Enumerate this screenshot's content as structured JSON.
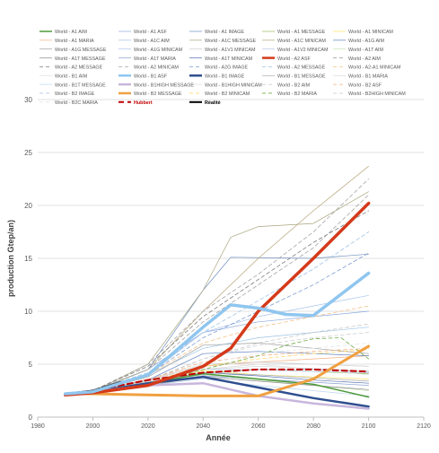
{
  "chart_data": {
    "type": "line",
    "title": "",
    "xlabel": "Année",
    "ylabel": "production Gtep/an)",
    "xlim": [
      1980,
      2120
    ],
    "ylim": [
      0,
      30
    ],
    "x_ticks": [
      "1980",
      "2000",
      "2020",
      "2040",
      "2060",
      "2080",
      "2100",
      "2120"
    ],
    "y_ticks": [
      "0",
      "5",
      "10",
      "15",
      "20",
      "25",
      "30"
    ],
    "grid": "horizontal",
    "legend_position": "top",
    "legend_columns": 5,
    "series": [
      {
        "name": "World - A1 AIM",
        "color": "#4e9a3a",
        "width": 1.5,
        "dash": "",
        "x": [
          1990,
          2000,
          2020,
          2040,
          2060,
          2080,
          2100
        ],
        "y": [
          2.2,
          2.4,
          3.2,
          4.1,
          3.6,
          3.1,
          1.9
        ]
      },
      {
        "name": "World - A1 ASF",
        "color": "#8faadc",
        "width": 0.7,
        "dash": "",
        "x": [
          1990,
          2000,
          2020,
          2040,
          2060,
          2080,
          2100
        ],
        "y": [
          2.2,
          2.5,
          4.5,
          8.0,
          9.0,
          9.5,
          10.0
        ]
      },
      {
        "name": "World - A1 IMAGE",
        "color": "#6f8fbf",
        "width": 0.7,
        "dash": "",
        "x": [
          1990,
          2000,
          2020,
          2040,
          2050,
          2080,
          2100
        ],
        "y": [
          2.2,
          2.4,
          4.5,
          12.0,
          15.1,
          15.0,
          15.4
        ]
      },
      {
        "name": "World - A1 MESSAGE",
        "color": "#9bbb59",
        "width": 0.7,
        "dash": "",
        "x": [
          1990,
          2000,
          2020,
          2040,
          2060,
          2080,
          2100
        ],
        "y": [
          2.2,
          2.4,
          3.0,
          4.2,
          4.5,
          4.3,
          4.1
        ]
      },
      {
        "name": "World - A1 MINICAM",
        "color": "#f5e264",
        "width": 0.7,
        "dash": "",
        "x": [
          1990,
          2000,
          2020,
          2040,
          2060,
          2080,
          2100
        ],
        "y": [
          2.2,
          2.4,
          3.2,
          4.4,
          4.0,
          3.8,
          3.6
        ]
      },
      {
        "name": "World - A1 MARIA",
        "color": "#f4b183",
        "width": 0.7,
        "dash": "",
        "x": [
          1990,
          2000,
          2020,
          2040,
          2060,
          2080,
          2100
        ],
        "y": [
          2.2,
          2.4,
          3.6,
          4.8,
          5.2,
          5.5,
          5.8
        ]
      },
      {
        "name": "World - A1C AIM",
        "color": "#9dc3e6",
        "width": 0.7,
        "dash": "",
        "x": [
          1990,
          2000,
          2020,
          2040,
          2060,
          2080,
          2100
        ],
        "y": [
          2.2,
          2.5,
          4.0,
          6.5,
          7.5,
          8.0,
          8.5
        ]
      },
      {
        "name": "World - A1C MESSAGE",
        "color": "#a9a57c",
        "width": 0.7,
        "dash": "",
        "x": [
          1990,
          2000,
          2020,
          2040,
          2050,
          2060,
          2080,
          2100
        ],
        "y": [
          2.2,
          2.4,
          5.0,
          12.0,
          17.0,
          18.0,
          18.3,
          21.3
        ]
      },
      {
        "name": "World - A1C MINICAM",
        "color": "#b5a57a",
        "width": 0.7,
        "dash": "",
        "x": [
          1990,
          2000,
          2020,
          2040,
          2060,
          2080,
          2100
        ],
        "y": [
          2.2,
          2.4,
          4.5,
          10.0,
          15.0,
          19.5,
          23.7
        ]
      },
      {
        "name": "World - A1G AIM",
        "color": "#5b7fbf",
        "width": 0.7,
        "dash": "",
        "x": [
          1990,
          2000,
          2020,
          2040,
          2060,
          2080,
          2100
        ],
        "y": [
          2.2,
          2.4,
          3.5,
          6.0,
          6.2,
          6.0,
          5.8
        ]
      },
      {
        "name": "World - A1G MESSAGE",
        "color": "#9e9e9e",
        "width": 0.7,
        "dash": "",
        "x": [
          1990,
          2000,
          2020,
          2040,
          2060,
          2080,
          2100
        ],
        "y": [
          2.2,
          2.4,
          3.8,
          6.8,
          7.0,
          6.5,
          6.0
        ]
      },
      {
        "name": "World - A1G MINICAM",
        "color": "#a9c4eb",
        "width": 0.7,
        "dash": "",
        "x": [
          1990,
          2000,
          2020,
          2040,
          2060,
          2080,
          2100
        ],
        "y": [
          2.2,
          2.4,
          4.0,
          8.0,
          9.5,
          10.5,
          11.5
        ]
      },
      {
        "name": "World - A1V1 MINICAM",
        "color": "#c9c9c9",
        "width": 0.7,
        "dash": "",
        "x": [
          1990,
          2000,
          2020,
          2040,
          2060,
          2080,
          2100
        ],
        "y": [
          2.2,
          2.4,
          3.4,
          5.0,
          5.2,
          5.0,
          4.8
        ]
      },
      {
        "name": "World - A1V2 MINICAM",
        "color": "#b4c7e7",
        "width": 0.7,
        "dash": "",
        "x": [
          1990,
          2000,
          2020,
          2040,
          2060,
          2080,
          2100
        ],
        "y": [
          2.2,
          2.4,
          3.2,
          4.5,
          4.5,
          4.3,
          4.2
        ]
      },
      {
        "name": "World - A1T AIM",
        "color": "#c5e0b4",
        "width": 0.7,
        "dash": "",
        "x": [
          1990,
          2000,
          2020,
          2040,
          2060,
          2080,
          2100
        ],
        "y": [
          2.2,
          2.4,
          3.0,
          4.0,
          3.5,
          3.0,
          2.5
        ]
      },
      {
        "name": "World - A1T MESSAGE",
        "color": "#8c8c8c",
        "width": 0.7,
        "dash": "",
        "x": [
          1990,
          2000,
          2020,
          2040,
          2060,
          2080,
          2100
        ],
        "y": [
          2.2,
          2.4,
          3.0,
          3.8,
          3.4,
          3.0,
          2.6
        ]
      },
      {
        "name": "World - A1T MARIA",
        "color": "#8da0d0",
        "width": 0.7,
        "dash": "",
        "x": [
          1990,
          2000,
          2020,
          2040,
          2060,
          2080,
          2100
        ],
        "y": [
          2.2,
          2.4,
          3.1,
          3.9,
          3.6,
          3.3,
          3.0
        ]
      },
      {
        "name": "World - A1T MINICAM",
        "color": "#5470b0",
        "width": 0.7,
        "dash": "",
        "x": [
          1990,
          2000,
          2020,
          2040,
          2060,
          2080,
          2100
        ],
        "y": [
          2.2,
          2.4,
          3.3,
          4.2,
          3.9,
          3.5,
          3.2
        ]
      },
      {
        "name": "World - A2 ASF",
        "color": "#d43a1a",
        "width": 3.5,
        "dash": "",
        "x": [
          1990,
          2000,
          2020,
          2040,
          2050,
          2060,
          2080,
          2100
        ],
        "y": [
          2.1,
          2.3,
          3.0,
          4.8,
          6.5,
          10.0,
          15.0,
          20.2
        ]
      },
      {
        "name": "World - A2 AIM",
        "color": "#a5a5a5",
        "width": 0.8,
        "dash": "4,3",
        "x": [
          1990,
          2000,
          2020,
          2040,
          2060,
          2080,
          2100
        ],
        "y": [
          2.2,
          2.5,
          5.0,
          10.0,
          13.5,
          17.5,
          22.5
        ]
      },
      {
        "name": "World - A2 MESSAGE",
        "color": "#7f7f7f",
        "width": 0.8,
        "dash": "4,3",
        "x": [
          1990,
          2000,
          2020,
          2040,
          2060,
          2080,
          2100
        ],
        "y": [
          2.2,
          2.5,
          4.8,
          9.5,
          13.0,
          16.5,
          19.5
        ]
      },
      {
        "name": "World - A2 MINICAM",
        "color": "#a5a5a5",
        "width": 0.8,
        "dash": "4,3",
        "x": [
          1990,
          2000,
          2020,
          2040,
          2060,
          2080,
          2100
        ],
        "y": [
          2.2,
          2.5,
          4.5,
          9.0,
          12.5,
          16.0,
          21.0
        ]
      },
      {
        "name": "World - A2G IMAGE",
        "color": "#7f9fd0",
        "width": 0.8,
        "dash": "4,3",
        "x": [
          1990,
          2000,
          2020,
          2040,
          2060,
          2080,
          2100
        ],
        "y": [
          2.2,
          2.5,
          4.0,
          7.5,
          10.0,
          12.5,
          15.5
        ]
      },
      {
        "name": "World - A2 MESSAGE",
        "color": "#9dc3e6",
        "width": 0.8,
        "dash": "4,3",
        "x": [
          1990,
          2000,
          2020,
          2040,
          2060,
          2080,
          2100
        ],
        "y": [
          2.2,
          2.5,
          4.2,
          8.0,
          11.0,
          14.0,
          17.5
        ]
      },
      {
        "name": "World - A2-A1 MINICAM",
        "color": "#f4c38a",
        "width": 0.8,
        "dash": "4,3",
        "x": [
          1990,
          2000,
          2020,
          2040,
          2060,
          2080,
          2100
        ],
        "y": [
          2.2,
          2.5,
          4.0,
          7.0,
          8.5,
          9.5,
          10.5
        ]
      },
      {
        "name": "World - B1 AIM",
        "color": "#e0e0e0",
        "width": 0.7,
        "dash": "",
        "x": [
          1990,
          2000,
          2020,
          2040,
          2060,
          2080,
          2100
        ],
        "y": [
          2.2,
          2.4,
          3.5,
          5.0,
          5.0,
          4.5,
          4.0
        ]
      },
      {
        "name": "World - B1 ASF",
        "color": "#8fc6ef",
        "width": 3.5,
        "dash": "",
        "x": [
          1990,
          2000,
          2020,
          2040,
          2050,
          2060,
          2070,
          2080,
          2100
        ],
        "y": [
          2.2,
          2.4,
          4.0,
          8.5,
          10.6,
          10.3,
          9.7,
          9.6,
          13.6
        ]
      },
      {
        "name": "World - B1 IMAGE",
        "color": "#2f4f8f",
        "width": 2.5,
        "dash": "",
        "x": [
          1990,
          2000,
          2020,
          2040,
          2060,
          2080,
          2100
        ],
        "y": [
          2.2,
          2.4,
          3.2,
          3.8,
          2.8,
          1.8,
          1.0
        ]
      },
      {
        "name": "World - B1 MESSAGE",
        "color": "#a6a6a6",
        "width": 0.7,
        "dash": "",
        "x": [
          1990,
          2000,
          2020,
          2040,
          2060,
          2080,
          2100
        ],
        "y": [
          2.2,
          2.4,
          3.3,
          4.2,
          4.0,
          3.7,
          3.4
        ]
      },
      {
        "name": "World - B1 MARIA",
        "color": "#d9d9d9",
        "width": 0.7,
        "dash": "",
        "x": [
          1990,
          2000,
          2020,
          2040,
          2060,
          2080,
          2100
        ],
        "y": [
          2.2,
          2.4,
          3.2,
          4.5,
          5.0,
          5.0,
          4.8
        ]
      },
      {
        "name": "World - B1T MESSAGE",
        "color": "#bdd7ee",
        "width": 0.7,
        "dash": "",
        "x": [
          1990,
          2000,
          2020,
          2040,
          2060,
          2080,
          2100
        ],
        "y": [
          2.2,
          2.4,
          3.0,
          3.6,
          3.0,
          2.5,
          2.0
        ]
      },
      {
        "name": "World - B1HIGH MESSAGE",
        "color": "#c8b6dc",
        "width": 2.5,
        "dash": "",
        "x": [
          1990,
          2000,
          2020,
          2040,
          2060,
          2080,
          2100
        ],
        "y": [
          2.2,
          2.4,
          3.0,
          3.2,
          2.0,
          1.3,
          0.8
        ]
      },
      {
        "name": "World - B1HIGH MINICAM",
        "color": "#d9d9d9",
        "width": 0.7,
        "dash": "",
        "x": [
          1990,
          2000,
          2020,
          2040,
          2060,
          2080,
          2100
        ],
        "y": [
          2.2,
          2.4,
          3.4,
          4.5,
          4.8,
          4.6,
          4.4
        ]
      },
      {
        "name": "World - B2 AIM",
        "color": "#c9c9c9",
        "width": 0.8,
        "dash": "4,3",
        "x": [
          1990,
          2000,
          2020,
          2040,
          2060,
          2080,
          2100
        ],
        "y": [
          2.2,
          2.4,
          3.4,
          5.5,
          7.0,
          8.0,
          8.8
        ]
      },
      {
        "name": "World - B2 ASF",
        "color": "#f4b183",
        "width": 0.8,
        "dash": "4,3",
        "x": [
          1990,
          2000,
          2020,
          2040,
          2060,
          2080,
          2100
        ],
        "y": [
          2.2,
          2.4,
          3.5,
          5.2,
          5.8,
          6.2,
          6.5
        ]
      },
      {
        "name": "World - B2 IMAGE",
        "color": "#b4c7e7",
        "width": 0.8,
        "dash": "4,3",
        "x": [
          1990,
          2000,
          2020,
          2040,
          2060,
          2080,
          2100
        ],
        "y": [
          2.2,
          2.4,
          3.0,
          4.0,
          4.5,
          4.5,
          4.3
        ]
      },
      {
        "name": "World - B2 MESSAGE",
        "color": "#f0a040",
        "width": 3.0,
        "dash": "",
        "x": [
          1990,
          2000,
          2020,
          2040,
          2060,
          2080,
          2100
        ],
        "y": [
          2.2,
          2.2,
          2.1,
          2.0,
          2.0,
          3.6,
          6.7
        ]
      },
      {
        "name": "World - B2 MINICAM",
        "color": "#ffd966",
        "width": 0.8,
        "dash": "4,3",
        "x": [
          1990,
          2000,
          2020,
          2040,
          2060,
          2080,
          2100
        ],
        "y": [
          2.2,
          2.4,
          3.3,
          4.8,
          5.5,
          6.0,
          6.4
        ]
      },
      {
        "name": "World - B2 MARIA",
        "color": "#70ad47",
        "width": 0.8,
        "dash": "4,3",
        "x": [
          1990,
          2000,
          2020,
          2040,
          2060,
          2070,
          2080,
          2090,
          2100
        ],
        "y": [
          2.2,
          2.4,
          3.2,
          4.5,
          5.8,
          6.8,
          7.4,
          7.5,
          5.5
        ]
      },
      {
        "name": "World - B2HIGH MINICAM",
        "color": "#d0cece",
        "width": 0.8,
        "dash": "4,3",
        "x": [
          1990,
          2000,
          2020,
          2040,
          2060,
          2080,
          2100
        ],
        "y": [
          2.2,
          2.4,
          3.5,
          5.5,
          6.8,
          7.5,
          8.0
        ]
      },
      {
        "name": "World - B2C MARIA",
        "color": "#e7e6e6",
        "width": 0.8,
        "dash": "4,3",
        "x": [
          1990,
          2000,
          2020,
          2040,
          2060,
          2080,
          2100
        ],
        "y": [
          2.2,
          2.4,
          3.3,
          5.0,
          6.0,
          6.5,
          7.0
        ]
      },
      {
        "name": "Hubbert",
        "color": "#c00000",
        "width": 2.0,
        "dash": "6,4",
        "x": [
          1990,
          2000,
          2020,
          2040,
          2060,
          2080,
          2100
        ],
        "y": [
          2.2,
          2.5,
          3.5,
          4.2,
          4.5,
          4.5,
          4.3
        ]
      },
      {
        "name": "Réalité",
        "color": "#000000",
        "width": 2.0,
        "dash": "",
        "x": [
          1990,
          2000,
          2010
        ],
        "y": [
          2.2,
          2.5,
          3.3
        ]
      }
    ]
  }
}
